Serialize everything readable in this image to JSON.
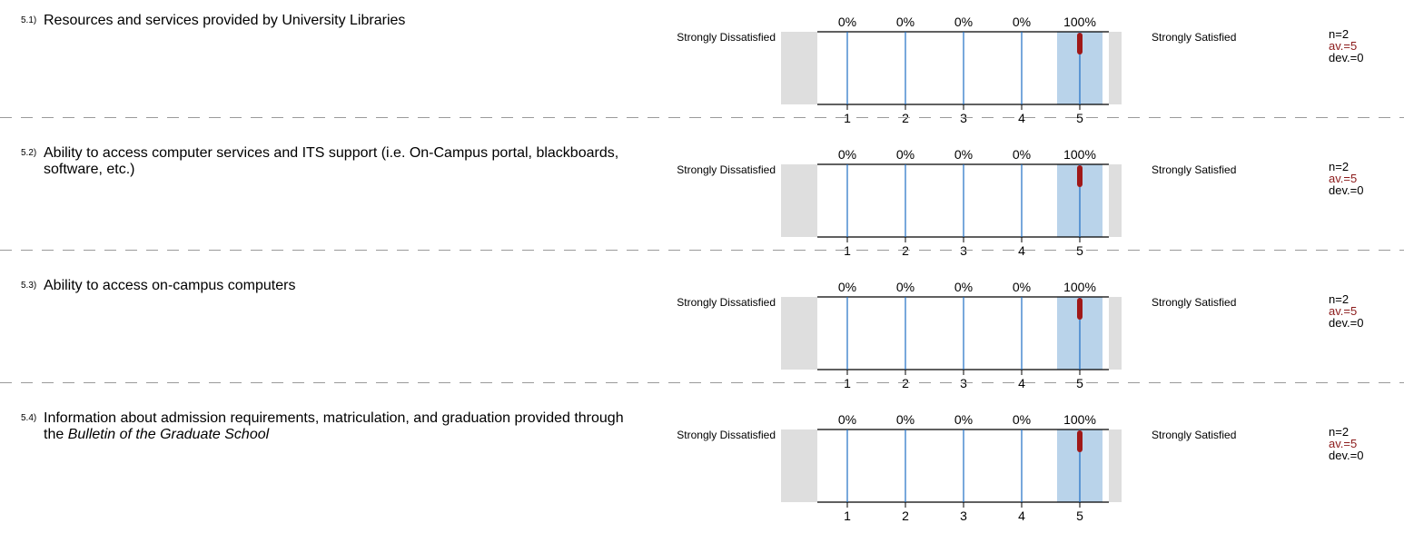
{
  "scale": {
    "left_label": "Strongly Dissatisfied",
    "right_label": "Strongly Satisfied",
    "ticks": [
      "1",
      "2",
      "3",
      "4",
      "5"
    ]
  },
  "colors": {
    "highlight": "#b9d3ea",
    "grey_box": "#dedede",
    "gridline": "#1f6fc4",
    "marker": "#a01818",
    "av_text": "#8b1a1a"
  },
  "questions": [
    {
      "num": "5.1)",
      "text": "Resources and services provided by University Libraries",
      "text_italic": "",
      "percents": [
        "0%",
        "0%",
        "0%",
        "0%",
        "100%"
      ],
      "n": "n=2",
      "av": "av.=5",
      "dev": "dev.=0"
    },
    {
      "num": "5.2)",
      "text": "Ability to access computer services and ITS support (i.e. On-Campus portal, blackboards, software, etc.)",
      "text_italic": "",
      "percents": [
        "0%",
        "0%",
        "0%",
        "0%",
        "100%"
      ],
      "n": "n=2",
      "av": "av.=5",
      "dev": "dev.=0"
    },
    {
      "num": "5.3)",
      "text": "Ability to access on-campus computers",
      "text_italic": "",
      "percents": [
        "0%",
        "0%",
        "0%",
        "0%",
        "100%"
      ],
      "n": "n=2",
      "av": "av.=5",
      "dev": "dev.=0"
    },
    {
      "num": "5.4)",
      "text": "Information about admission requirements, matriculation, and graduation provided through the ",
      "text_italic": "Bulletin of the Graduate School",
      "percents": [
        "0%",
        "0%",
        "0%",
        "0%",
        "100%"
      ],
      "n": "n=2",
      "av": "av.=5",
      "dev": "dev.=0"
    }
  ],
  "chart_data": [
    {
      "type": "bar",
      "title": "Resources and services provided by University Libraries",
      "categories": [
        "1",
        "2",
        "3",
        "4",
        "5"
      ],
      "values": [
        0,
        0,
        0,
        0,
        100
      ],
      "n": 2,
      "mean": 5,
      "std_dev": 0,
      "left_anchor": "Strongly Dissatisfied",
      "right_anchor": "Strongly Satisfied"
    },
    {
      "type": "bar",
      "title": "Ability to access computer services and ITS support (i.e. On-Campus portal, blackboards, software, etc.)",
      "categories": [
        "1",
        "2",
        "3",
        "4",
        "5"
      ],
      "values": [
        0,
        0,
        0,
        0,
        100
      ],
      "n": 2,
      "mean": 5,
      "std_dev": 0,
      "left_anchor": "Strongly Dissatisfied",
      "right_anchor": "Strongly Satisfied"
    },
    {
      "type": "bar",
      "title": "Ability to access on-campus computers",
      "categories": [
        "1",
        "2",
        "3",
        "4",
        "5"
      ],
      "values": [
        0,
        0,
        0,
        0,
        100
      ],
      "n": 2,
      "mean": 5,
      "std_dev": 0,
      "left_anchor": "Strongly Dissatisfied",
      "right_anchor": "Strongly Satisfied"
    },
    {
      "type": "bar",
      "title": "Information about admission requirements, matriculation, and graduation provided through the Bulletin of the Graduate School",
      "categories": [
        "1",
        "2",
        "3",
        "4",
        "5"
      ],
      "values": [
        0,
        0,
        0,
        0,
        100
      ],
      "n": 2,
      "mean": 5,
      "std_dev": 0,
      "left_anchor": "Strongly Dissatisfied",
      "right_anchor": "Strongly Satisfied"
    }
  ]
}
